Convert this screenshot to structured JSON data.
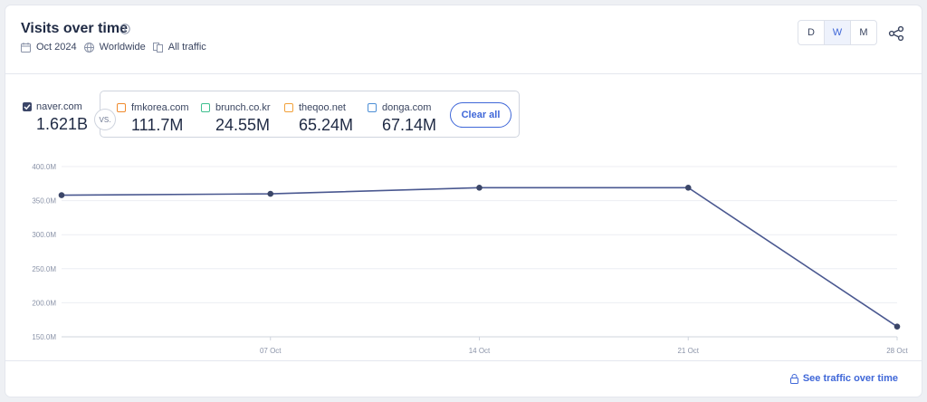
{
  "header": {
    "title": "Visits over time",
    "date": "Oct 2024",
    "region": "Worldwide",
    "traffic": "All traffic",
    "granularity": [
      "D",
      "W",
      "M"
    ],
    "granularity_selected": "W"
  },
  "main_site": {
    "name": "naver.com",
    "value": "1.621B"
  },
  "vs_label": "VS.",
  "competitors": [
    {
      "name": "fmkorea.com",
      "value": "111.7M",
      "color": "#f08a2c"
    },
    {
      "name": "brunch.co.kr",
      "value": "24.55M",
      "color": "#3ebf8f"
    },
    {
      "name": "theqoo.net",
      "value": "65.24M",
      "color": "#f2a13a"
    },
    {
      "name": "donga.com",
      "value": "67.14M",
      "color": "#4d8fd6"
    }
  ],
  "clear_label": "Clear all",
  "footer": {
    "link": "See traffic over time"
  },
  "colors": {
    "accent": "#3f67d8",
    "series": "#4a5890"
  },
  "chart_data": {
    "type": "line",
    "x": [
      "2024-09-30",
      "2024-10-07",
      "2024-10-14",
      "2024-10-21",
      "2024-10-28"
    ],
    "xtick_labels": [
      "07 Oct",
      "14 Oct",
      "21 Oct",
      "28 Oct"
    ],
    "xtick_values": [
      "2024-10-07",
      "2024-10-14",
      "2024-10-21",
      "2024-10-28"
    ],
    "series": [
      {
        "values": [
          358000000,
          360000000,
          369000000,
          369000000,
          165000000
        ]
      }
    ],
    "ytick_labels": [
      "150.0M",
      "200.0M",
      "250.0M",
      "300.0M",
      "350.0M",
      "400.0M"
    ],
    "ytick_values": [
      150000000,
      200000000,
      250000000,
      300000000,
      350000000,
      400000000
    ],
    "ylim": [
      150000000,
      400000000
    ],
    "grid": true
  }
}
